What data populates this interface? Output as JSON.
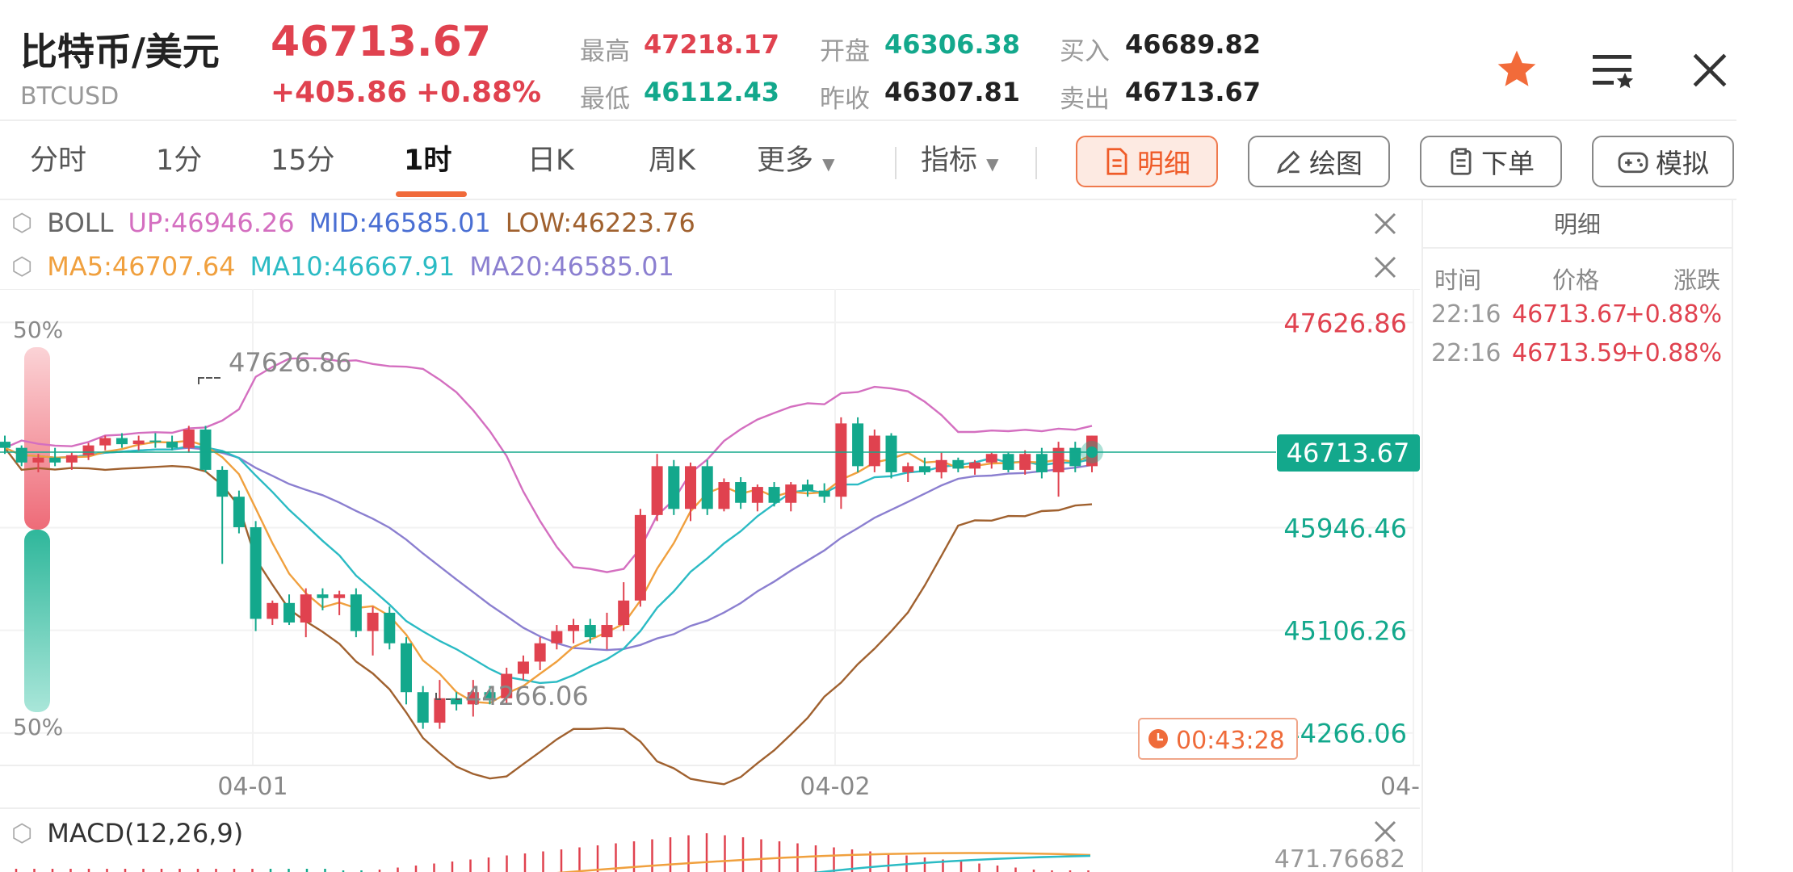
{
  "header": {
    "pair_name": "比特币/美元",
    "pair_code": "BTCUSD",
    "price": "46713.67",
    "change": "+405.86",
    "change_pct": "+0.88%",
    "stats": {
      "high_label": "最高",
      "high": "47218.17",
      "low_label": "最低",
      "low": "46112.43",
      "open_label": "开盘",
      "open": "46306.38",
      "prev_close_label": "昨收",
      "prev_close": "46307.81",
      "bid_label": "买入",
      "bid": "46689.82",
      "ask_label": "卖出",
      "ask": "46713.67"
    }
  },
  "tabs": {
    "items": [
      "分时",
      "1分",
      "15分",
      "1时",
      "日K",
      "周K"
    ],
    "active": "1时",
    "more": "更多",
    "indicators": "指标",
    "detail_btn": "明细",
    "draw_btn": "绘图",
    "order_btn": "下单",
    "sim_btn": "模拟"
  },
  "legend": {
    "boll_name": "BOLL",
    "boll_up": "UP:46946.26",
    "boll_mid": "MID:46585.01",
    "boll_low": "LOW:46223.76",
    "ma5": "MA5:46707.64",
    "ma10": "MA10:46667.91",
    "ma20": "MA20:46585.01",
    "macd": "MACD(12,26,9)"
  },
  "colors": {
    "up": "#e0424f",
    "down": "#13a88c",
    "accent": "#ef5b28",
    "boll_up": "#d46fc0",
    "boll_mid": "#4a6fd3",
    "boll_low": "#a0612f",
    "ma5": "#f0a03e",
    "ma10": "#2bbbc4",
    "ma20": "#8b7fd0"
  },
  "chart_labels": {
    "pct_top": "50%",
    "pct_bottom": "50%",
    "high_marker": "47626.86",
    "low_marker": "44266.06",
    "price_tag": "46713.67",
    "countdown": "00:43:28",
    "macd_value": "471.76682"
  },
  "detail": {
    "title": "明细",
    "col_time": "时间",
    "col_price": "价格",
    "col_change": "涨跌",
    "rows": [
      {
        "time": "22:16",
        "price": "46713.67",
        "change": "+0.88%"
      },
      {
        "time": "22:16",
        "price": "46713.59",
        "change": "+0.88%"
      }
    ]
  },
  "chart_data": {
    "type": "candlestick",
    "y_ticks": [
      "47626.86",
      "45946.46",
      "45106.26",
      "44266.06"
    ],
    "x_ticks": [
      "04-01",
      "04-02",
      "04-"
    ],
    "ylim": [
      44000,
      47900
    ],
    "candles": [
      [
        46650,
        46700,
        46550,
        46600
      ],
      [
        46600,
        46620,
        46450,
        46480
      ],
      [
        46480,
        46550,
        46400,
        46520
      ],
      [
        46520,
        46600,
        46450,
        46480
      ],
      [
        46480,
        46560,
        46420,
        46540
      ],
      [
        46540,
        46640,
        46500,
        46620
      ],
      [
        46620,
        46700,
        46580,
        46680
      ],
      [
        46680,
        46720,
        46600,
        46630
      ],
      [
        46630,
        46700,
        46580,
        46660
      ],
      [
        46660,
        46720,
        46600,
        46650
      ],
      [
        46650,
        46700,
        46580,
        46600
      ],
      [
        46600,
        46780,
        46560,
        46750
      ],
      [
        46750,
        46780,
        46400,
        46420
      ],
      [
        46420,
        46450,
        45650,
        46200
      ],
      [
        46200,
        46250,
        45900,
        45950
      ],
      [
        45950,
        46000,
        45100,
        45200
      ],
      [
        45200,
        45350,
        45150,
        45330
      ],
      [
        45330,
        45400,
        45150,
        45170
      ],
      [
        45170,
        45450,
        45050,
        45400
      ],
      [
        45400,
        45450,
        45270,
        45370
      ],
      [
        45370,
        45430,
        45230,
        45400
      ],
      [
        45400,
        45450,
        45050,
        45100
      ],
      [
        45100,
        45300,
        44900,
        45250
      ],
      [
        45250,
        45300,
        44950,
        45000
      ],
      [
        45000,
        45050,
        44500,
        44600
      ],
      [
        44600,
        44650,
        44300,
        44350
      ],
      [
        44350,
        44700,
        44300,
        44550
      ],
      [
        44550,
        44600,
        44450,
        44500
      ],
      [
        44500,
        44700,
        44400,
        44600
      ],
      [
        44600,
        44650,
        44500,
        44550
      ],
      [
        44550,
        44800,
        44500,
        44750
      ],
      [
        44750,
        44900,
        44700,
        44850
      ],
      [
        44850,
        45050,
        44780,
        45000
      ],
      [
        45000,
        45150,
        44950,
        45100
      ],
      [
        45100,
        45200,
        45000,
        45150
      ],
      [
        45150,
        45200,
        45000,
        45050
      ],
      [
        45050,
        45250,
        44950,
        45150
      ],
      [
        45150,
        45500,
        45100,
        45350
      ],
      [
        45350,
        46100,
        45300,
        46050
      ],
      [
        46050,
        46550,
        46000,
        46450
      ],
      [
        46450,
        46500,
        46050,
        46100
      ],
      [
        46100,
        46480,
        46000,
        46450
      ],
      [
        46450,
        46500,
        46050,
        46100
      ],
      [
        46100,
        46350,
        46080,
        46320
      ],
      [
        46320,
        46360,
        46100,
        46150
      ],
      [
        46150,
        46300,
        46080,
        46280
      ],
      [
        46280,
        46320,
        46120,
        46150
      ],
      [
        46150,
        46320,
        46080,
        46300
      ],
      [
        46300,
        46340,
        46200,
        46250
      ],
      [
        46250,
        46310,
        46150,
        46200
      ],
      [
        46200,
        46850,
        46100,
        46800
      ],
      [
        46800,
        46850,
        46400,
        46450
      ],
      [
        46450,
        46750,
        46400,
        46700
      ],
      [
        46700,
        46720,
        46350,
        46400
      ],
      [
        46400,
        46480,
        46320,
        46450
      ],
      [
        46450,
        46520,
        46380,
        46400
      ],
      [
        46400,
        46560,
        46350,
        46500
      ],
      [
        46500,
        46520,
        46400,
        46430
      ],
      [
        46430,
        46500,
        46380,
        46480
      ],
      [
        46480,
        46560,
        46430,
        46550
      ],
      [
        46550,
        46560,
        46400,
        46420
      ],
      [
        46420,
        46580,
        46380,
        46550
      ],
      [
        46550,
        46600,
        46350,
        46400
      ],
      [
        46400,
        46650,
        46200,
        46600
      ],
      [
        46600,
        46650,
        46400,
        46450
      ],
      [
        46450,
        46700,
        46400,
        46700
      ]
    ]
  }
}
